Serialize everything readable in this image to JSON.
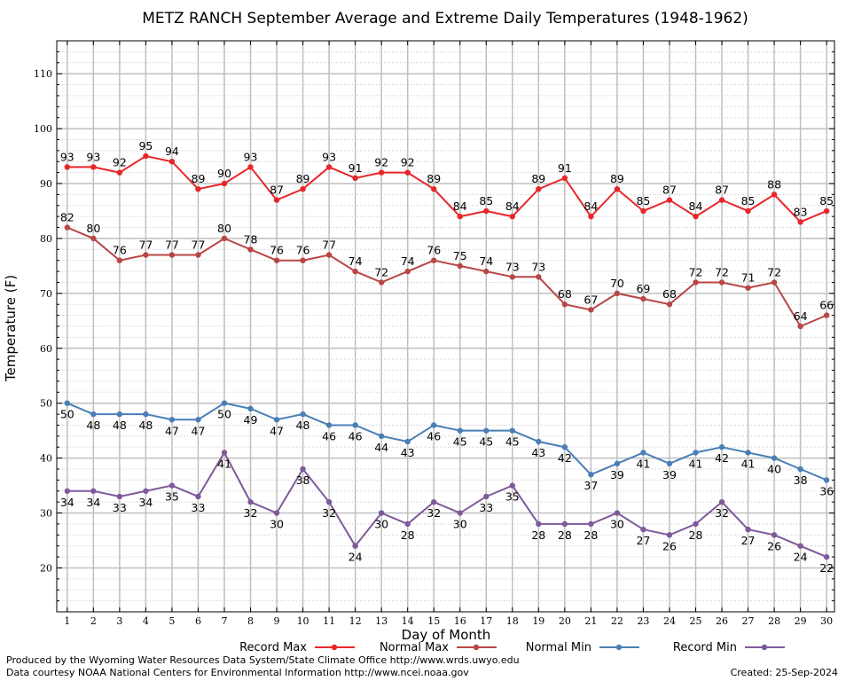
{
  "chart_data": {
    "type": "line",
    "title": "METZ RANCH September Average and Extreme Daily Temperatures (1948-1962)",
    "xlabel": "Day of Month",
    "ylabel": "Temperature (F)",
    "x": [
      1,
      2,
      3,
      4,
      5,
      6,
      7,
      8,
      9,
      10,
      11,
      12,
      13,
      14,
      15,
      16,
      17,
      18,
      19,
      20,
      21,
      22,
      23,
      24,
      25,
      26,
      27,
      28,
      29,
      30
    ],
    "xlim": [
      0.6,
      30.3
    ],
    "ylim": [
      12,
      116
    ],
    "yticks": [
      20,
      30,
      40,
      50,
      60,
      70,
      80,
      90,
      100,
      110
    ],
    "grid": true,
    "legend_position": "bottom",
    "series": [
      {
        "name": "Record Max",
        "color": "#e8262a",
        "label_pos": "above",
        "values": [
          93,
          93,
          92,
          95,
          94,
          89,
          90,
          93,
          87,
          89,
          93,
          91,
          92,
          92,
          89,
          84,
          85,
          84,
          89,
          91,
          84,
          89,
          85,
          87,
          84,
          87,
          85,
          88,
          83,
          85
        ]
      },
      {
        "name": "Normal Max",
        "color": "#b84646",
        "label_pos": "above",
        "values": [
          82,
          80,
          76,
          77,
          77,
          77,
          80,
          78,
          76,
          76,
          77,
          74,
          72,
          74,
          76,
          75,
          74,
          73,
          73,
          68,
          67,
          70,
          69,
          68,
          72,
          72,
          71,
          72,
          64,
          66
        ]
      },
      {
        "name": "Normal Min",
        "color": "#4a7fb5",
        "label_pos": "below",
        "values": [
          50,
          48,
          48,
          48,
          47,
          47,
          50,
          49,
          47,
          48,
          46,
          46,
          44,
          43,
          46,
          45,
          45,
          45,
          43,
          42,
          37,
          39,
          41,
          39,
          41,
          42,
          41,
          40,
          38,
          36
        ]
      },
      {
        "name": "Record Min",
        "color": "#7d5a9a",
        "label_pos": "below",
        "values": [
          34,
          34,
          33,
          34,
          35,
          33,
          41,
          32,
          30,
          38,
          32,
          24,
          30,
          28,
          32,
          30,
          33,
          35,
          28,
          28,
          28,
          30,
          27,
          26,
          28,
          32,
          27,
          26,
          24,
          22
        ]
      }
    ]
  },
  "footer": {
    "produced_by": "Produced by the Wyoming Water Resources Data System/State Climate Office http://www.wrds.uwyo.edu",
    "data_courtesy": "Data courtesy NOAA National Centers for Environmental Information http://www.ncei.noaa.gov",
    "created": "Created:  25-Sep-2024"
  }
}
